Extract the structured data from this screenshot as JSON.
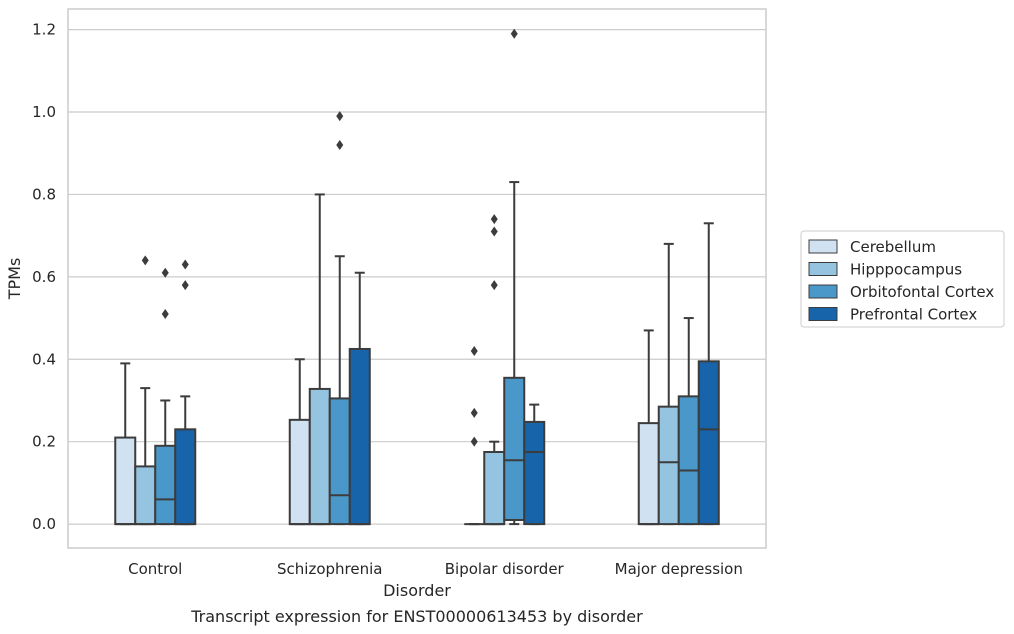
{
  "chart_data": {
    "type": "box",
    "title": "",
    "caption": "Transcript expression for ENST00000613453 by disorder",
    "xlabel": "Disorder",
    "ylabel": "TPMs",
    "ylim": [
      -0.058,
      1.25
    ],
    "yticks": [
      0.0,
      0.2,
      0.4,
      0.6,
      0.8,
      1.0,
      1.2
    ],
    "ytick_labels": [
      "0.0",
      "0.2",
      "0.4",
      "0.6",
      "0.8",
      "1.0",
      "1.2"
    ],
    "grid": true,
    "legend_position": "right",
    "categories": [
      "Control",
      "Schizophrenia",
      "Bipolar disorder",
      "Major depression"
    ],
    "series": [
      {
        "name": "Cerebellum",
        "color": "#d0e1f2",
        "boxes": [
          {
            "q1": 0.0,
            "median": 0.0,
            "q3": 0.21,
            "whisker_low": 0.0,
            "whisker_high": 0.39,
            "outliers": []
          },
          {
            "q1": 0.0,
            "median": 0.0,
            "q3": 0.253,
            "whisker_low": 0.0,
            "whisker_high": 0.4,
            "outliers": []
          },
          {
            "q1": 0.0,
            "median": 0.0,
            "q3": 0.0,
            "whisker_low": 0.0,
            "whisker_high": 0.0,
            "outliers": [
              0.2,
              0.27,
              0.42
            ]
          },
          {
            "q1": 0.0,
            "median": 0.0,
            "q3": 0.245,
            "whisker_low": 0.0,
            "whisker_high": 0.47,
            "outliers": []
          }
        ]
      },
      {
        "name": "Hipppocampus",
        "color": "#94c4df",
        "boxes": [
          {
            "q1": 0.0,
            "median": 0.0,
            "q3": 0.14,
            "whisker_low": 0.0,
            "whisker_high": 0.33,
            "outliers": [
              0.64
            ]
          },
          {
            "q1": 0.0,
            "median": 0.0,
            "q3": 0.328,
            "whisker_low": 0.0,
            "whisker_high": 0.8,
            "outliers": []
          },
          {
            "q1": 0.0,
            "median": 0.0,
            "q3": 0.175,
            "whisker_low": 0.0,
            "whisker_high": 0.2,
            "outliers": [
              0.58,
              0.71,
              0.74
            ]
          },
          {
            "q1": 0.0,
            "median": 0.15,
            "q3": 0.285,
            "whisker_low": 0.0,
            "whisker_high": 0.68,
            "outliers": []
          }
        ]
      },
      {
        "name": "Orbitofontal Cortex",
        "color": "#4a98c9",
        "boxes": [
          {
            "q1": 0.0,
            "median": 0.06,
            "q3": 0.19,
            "whisker_low": 0.0,
            "whisker_high": 0.3,
            "outliers": [
              0.51,
              0.61
            ]
          },
          {
            "q1": 0.0,
            "median": 0.07,
            "q3": 0.305,
            "whisker_low": 0.0,
            "whisker_high": 0.65,
            "outliers": [
              0.92,
              0.99
            ]
          },
          {
            "q1": 0.01,
            "median": 0.155,
            "q3": 0.355,
            "whisker_low": 0.0,
            "whisker_high": 0.83,
            "outliers": [
              1.19
            ]
          },
          {
            "q1": 0.0,
            "median": 0.13,
            "q3": 0.31,
            "whisker_low": 0.0,
            "whisker_high": 0.5,
            "outliers": []
          }
        ]
      },
      {
        "name": "Prefrontal Cortex",
        "color": "#1764ab",
        "boxes": [
          {
            "q1": 0.0,
            "median": 0.0,
            "q3": 0.23,
            "whisker_low": 0.0,
            "whisker_high": 0.31,
            "outliers": [
              0.58,
              0.63
            ]
          },
          {
            "q1": 0.0,
            "median": 0.0,
            "q3": 0.425,
            "whisker_low": 0.0,
            "whisker_high": 0.61,
            "outliers": []
          },
          {
            "q1": 0.0,
            "median": 0.175,
            "q3": 0.248,
            "whisker_low": 0.0,
            "whisker_high": 0.29,
            "outliers": []
          },
          {
            "q1": 0.0,
            "median": 0.23,
            "q3": 0.395,
            "whisker_low": 0.0,
            "whisker_high": 0.73,
            "outliers": []
          }
        ]
      }
    ]
  }
}
